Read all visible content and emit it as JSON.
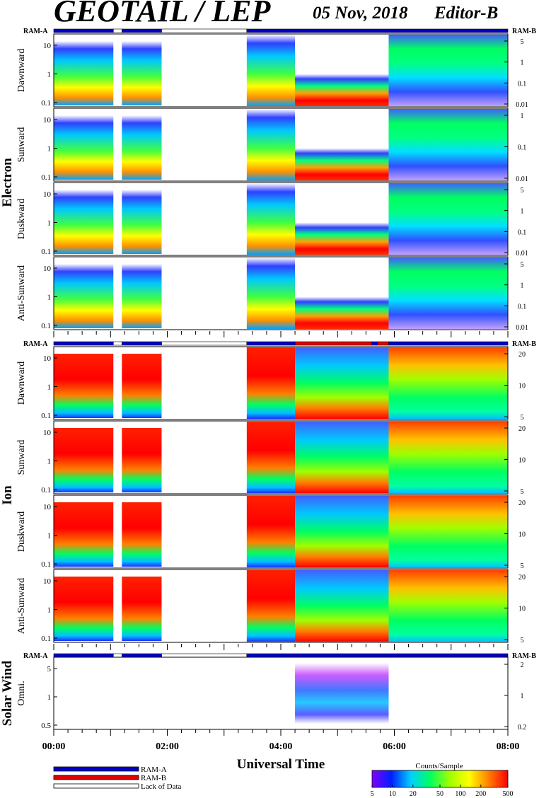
{
  "header": {
    "title": "GEOTAIL / LEP",
    "date": "05 Nov, 2018",
    "editor": "Editor-B"
  },
  "chart_data": {
    "type": "heatmap",
    "xlabel": "Universal Time",
    "x_ticks": [
      "00:00",
      "02:00",
      "04:00",
      "06:00",
      "08:00"
    ],
    "x_range_hours": [
      0,
      8
    ],
    "ram_labels": {
      "left": "RAM-A",
      "right": "RAM-B"
    },
    "groups": [
      {
        "name": "Electron",
        "panels": [
          {
            "label": "Dawnward",
            "left_ticks": [
              "10",
              "1",
              "0.1"
            ],
            "right_ticks": [
              "5",
              "1",
              "0.1",
              "0.01"
            ]
          },
          {
            "label": "Sunward",
            "left_ticks": [
              "10",
              "1",
              "0.1"
            ],
            "right_ticks": [
              "1",
              "0.1",
              "0.01"
            ]
          },
          {
            "label": "Duskward",
            "left_ticks": [
              "10",
              "1",
              "0.1"
            ],
            "right_ticks": [
              "5",
              "1",
              "0.1",
              "0.01"
            ]
          },
          {
            "label": "Anti-Sunward",
            "left_ticks": [
              "10",
              "1",
              "0.1"
            ],
            "right_ticks": [
              "5",
              "1",
              "0.1",
              "0.01"
            ]
          }
        ]
      },
      {
        "name": "Ion",
        "panels": [
          {
            "label": "Dawnward",
            "left_ticks": [
              "10",
              "1",
              "0.1"
            ],
            "right_ticks": [
              "20",
              "10",
              "5"
            ]
          },
          {
            "label": "Sunward",
            "left_ticks": [
              "10",
              "1",
              "0.1"
            ],
            "right_ticks": [
              "20",
              "10",
              "5"
            ]
          },
          {
            "label": "Duskward",
            "left_ticks": [
              "10",
              "1",
              "0.1"
            ],
            "right_ticks": [
              "20",
              "10",
              "5"
            ]
          },
          {
            "label": "Anti-Sunward",
            "left_ticks": [
              "10",
              "1",
              "0.1"
            ],
            "right_ticks": [
              "20",
              "10",
              "5"
            ]
          }
        ]
      },
      {
        "name": "Solar Wind",
        "panels": [
          {
            "label": "Omni.",
            "left_ticks": [
              "5",
              "1",
              "0.5"
            ],
            "right_ticks": [
              "2",
              "1",
              "0.2"
            ]
          }
        ]
      }
    ],
    "mode_bars": {
      "electron": [
        {
          "from": 0.0,
          "to": 1.05,
          "mode": "RAM-A"
        },
        {
          "from": 1.05,
          "to": 1.2,
          "mode": "none"
        },
        {
          "from": 1.2,
          "to": 1.9,
          "mode": "RAM-A"
        },
        {
          "from": 1.9,
          "to": 3.4,
          "mode": "none"
        },
        {
          "from": 3.4,
          "to": 8.0,
          "mode": "RAM-A"
        }
      ],
      "ion": [
        {
          "from": 0.0,
          "to": 1.05,
          "mode": "RAM-A"
        },
        {
          "from": 1.05,
          "to": 1.2,
          "mode": "none"
        },
        {
          "from": 1.2,
          "to": 1.9,
          "mode": "RAM-A"
        },
        {
          "from": 1.9,
          "to": 3.4,
          "mode": "none"
        },
        {
          "from": 3.4,
          "to": 4.25,
          "mode": "RAM-A"
        },
        {
          "from": 4.25,
          "to": 5.6,
          "mode": "RAM-B"
        },
        {
          "from": 5.6,
          "to": 5.7,
          "mode": "RAM-A"
        },
        {
          "from": 5.7,
          "to": 5.9,
          "mode": "RAM-B"
        },
        {
          "from": 5.9,
          "to": 8.0,
          "mode": "RAM-A"
        }
      ],
      "solarwind": [
        {
          "from": 0.0,
          "to": 1.05,
          "mode": "RAM-A"
        },
        {
          "from": 1.05,
          "to": 1.2,
          "mode": "none"
        },
        {
          "from": 1.2,
          "to": 1.9,
          "mode": "RAM-A"
        },
        {
          "from": 1.9,
          "to": 3.4,
          "mode": "none"
        },
        {
          "from": 3.4,
          "to": 8.0,
          "mode": "RAM-A"
        }
      ]
    },
    "data_segments_hours": [
      [
        0.0,
        1.05
      ],
      [
        1.2,
        1.9
      ],
      [
        3.4,
        8.0
      ]
    ],
    "legend": [
      {
        "label": "RAM-A",
        "color": "#0000c8"
      },
      {
        "label": "RAM-B",
        "color": "#e00000"
      },
      {
        "label": "Lack of Data",
        "color": "#ffffff"
      }
    ],
    "colorbar": {
      "title": "Counts/Sample",
      "ticks": [
        "5",
        "10",
        "20",
        "50",
        "100",
        "200",
        "500"
      ],
      "range": [
        5,
        500
      ],
      "scale": "log",
      "colors": [
        "#8000ff",
        "#0020ff",
        "#00d0ff",
        "#00ff60",
        "#a0ff00",
        "#ffff00",
        "#ff8000",
        "#ff0000"
      ]
    }
  }
}
